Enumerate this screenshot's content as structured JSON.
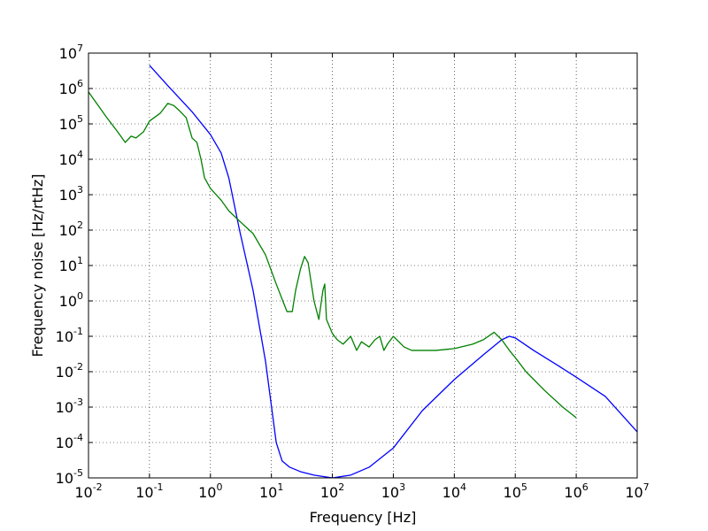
{
  "chart_data": {
    "type": "line",
    "xlabel": "Frequency [Hz]",
    "ylabel": "Frequency noise [Hz/rtHz]",
    "xscale": "log",
    "yscale": "log",
    "xlim": [
      0.01,
      10000000
    ],
    "ylim": [
      1e-05,
      10000000
    ],
    "grid": true,
    "x_ticks": [
      {
        "base": "10",
        "exp": "-2"
      },
      {
        "base": "10",
        "exp": "-1"
      },
      {
        "base": "10",
        "exp": "0"
      },
      {
        "base": "10",
        "exp": "1"
      },
      {
        "base": "10",
        "exp": "2"
      },
      {
        "base": "10",
        "exp": "3"
      },
      {
        "base": "10",
        "exp": "4"
      },
      {
        "base": "10",
        "exp": "5"
      },
      {
        "base": "10",
        "exp": "6"
      },
      {
        "base": "10",
        "exp": "7"
      }
    ],
    "y_ticks": [
      {
        "base": "10",
        "exp": "-5"
      },
      {
        "base": "10",
        "exp": "-4"
      },
      {
        "base": "10",
        "exp": "-3"
      },
      {
        "base": "10",
        "exp": "-2"
      },
      {
        "base": "10",
        "exp": "-1"
      },
      {
        "base": "10",
        "exp": "0"
      },
      {
        "base": "10",
        "exp": "1"
      },
      {
        "base": "10",
        "exp": "2"
      },
      {
        "base": "10",
        "exp": "3"
      },
      {
        "base": "10",
        "exp": "4"
      },
      {
        "base": "10",
        "exp": "5"
      },
      {
        "base": "10",
        "exp": "6"
      },
      {
        "base": "10",
        "exp": "7"
      }
    ],
    "series": [
      {
        "color": "#0000ff",
        "points": [
          [
            0.1,
            4500000
          ],
          [
            0.2,
            1200000
          ],
          [
            0.5,
            220000
          ],
          [
            1,
            50000
          ],
          [
            1.5,
            15000
          ],
          [
            2,
            3000
          ],
          [
            3,
            100
          ],
          [
            5,
            2
          ],
          [
            8,
            0.02
          ],
          [
            12,
            0.0001
          ],
          [
            15,
            3e-05
          ],
          [
            20,
            2e-05
          ],
          [
            30,
            1.5e-05
          ],
          [
            50,
            1.2e-05
          ],
          [
            100,
            1e-05
          ],
          [
            200,
            1.2e-05
          ],
          [
            400,
            2e-05
          ],
          [
            1000,
            7e-05
          ],
          [
            3000,
            0.0008
          ],
          [
            10000,
            0.006
          ],
          [
            30000,
            0.03
          ],
          [
            60000,
            0.08
          ],
          [
            80000,
            0.1
          ],
          [
            100000,
            0.09
          ],
          [
            200000,
            0.04
          ],
          [
            500000,
            0.015
          ],
          [
            1000000,
            0.007
          ],
          [
            3000000,
            0.002
          ],
          [
            10000000,
            0.0002
          ]
        ]
      },
      {
        "color": "#008000",
        "points": [
          [
            0.01,
            800000
          ],
          [
            0.015,
            300000
          ],
          [
            0.02,
            150000
          ],
          [
            0.03,
            60000
          ],
          [
            0.04,
            30000
          ],
          [
            0.05,
            45000
          ],
          [
            0.06,
            40000
          ],
          [
            0.08,
            60000
          ],
          [
            0.1,
            120000
          ],
          [
            0.15,
            200000
          ],
          [
            0.2,
            380000
          ],
          [
            0.25,
            330000
          ],
          [
            0.3,
            250000
          ],
          [
            0.4,
            150000
          ],
          [
            0.5,
            40000
          ],
          [
            0.6,
            30000
          ],
          [
            0.7,
            10000
          ],
          [
            0.8,
            3000
          ],
          [
            1,
            1500
          ],
          [
            1.5,
            700
          ],
          [
            2,
            350
          ],
          [
            3,
            180
          ],
          [
            5,
            80
          ],
          [
            8,
            20
          ],
          [
            12,
            3
          ],
          [
            18,
            0.5
          ],
          [
            22,
            0.5
          ],
          [
            25,
            2
          ],
          [
            30,
            8
          ],
          [
            35,
            18
          ],
          [
            40,
            12
          ],
          [
            50,
            1
          ],
          [
            60,
            0.3
          ],
          [
            70,
            2
          ],
          [
            75,
            3
          ],
          [
            80,
            0.3
          ],
          [
            100,
            0.12
          ],
          [
            120,
            0.08
          ],
          [
            150,
            0.06
          ],
          [
            200,
            0.1
          ],
          [
            250,
            0.04
          ],
          [
            300,
            0.07
          ],
          [
            400,
            0.05
          ],
          [
            500,
            0.08
          ],
          [
            600,
            0.1
          ],
          [
            700,
            0.04
          ],
          [
            800,
            0.06
          ],
          [
            1000,
            0.1
          ],
          [
            1500,
            0.05
          ],
          [
            2000,
            0.04
          ],
          [
            3000,
            0.04
          ],
          [
            5000,
            0.04
          ],
          [
            10000,
            0.045
          ],
          [
            20000,
            0.06
          ],
          [
            30000,
            0.08
          ],
          [
            45000,
            0.13
          ],
          [
            60000,
            0.08
          ],
          [
            80000,
            0.04
          ],
          [
            100000,
            0.025
          ],
          [
            150000,
            0.01
          ],
          [
            300000,
            0.003
          ],
          [
            600000,
            0.001
          ],
          [
            1000000,
            0.0005
          ]
        ]
      }
    ]
  }
}
